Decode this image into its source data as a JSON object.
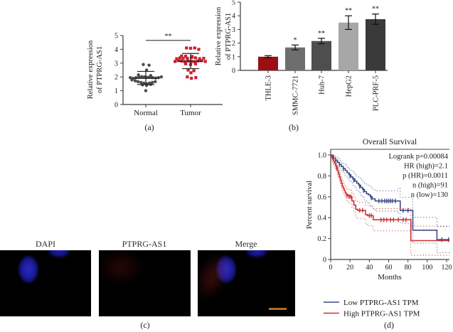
{
  "chart_data": [
    {
      "id": "a",
      "type": "scatter",
      "caption": "(a)",
      "ylabel": "Relative expression of PTPRG-AS1",
      "ylabel_lines": [
        "Relative expression",
        "of PTPRG-AS1"
      ],
      "ylim": [
        0,
        5
      ],
      "yticks": [
        0,
        1,
        2,
        3,
        4,
        5
      ],
      "significance": {
        "label": "**",
        "between": [
          "Normal",
          "Tumor"
        ],
        "y": 4.65
      },
      "groups": [
        {
          "name": "Normal",
          "marker": "circle",
          "color": "#4a4a4a",
          "mean": 1.9,
          "err_low": 1.45,
          "err_high": 2.4,
          "points": [
            [
              -0.15,
              2.9
            ],
            [
              0.2,
              2.85
            ],
            [
              0.05,
              2.5
            ],
            [
              -0.45,
              2.15
            ],
            [
              0.3,
              2.1
            ],
            [
              -0.95,
              1.95
            ],
            [
              -0.78,
              1.9
            ],
            [
              -0.6,
              1.95
            ],
            [
              -0.42,
              1.98
            ],
            [
              -0.25,
              2.02
            ],
            [
              -0.08,
              2.0
            ],
            [
              0.08,
              1.97
            ],
            [
              0.25,
              2.0
            ],
            [
              0.42,
              1.95
            ],
            [
              0.6,
              1.92
            ],
            [
              0.78,
              1.95
            ],
            [
              0.95,
              2.0
            ],
            [
              -0.85,
              1.78
            ],
            [
              -0.65,
              1.72
            ],
            [
              -0.48,
              1.66
            ],
            [
              -0.3,
              1.6
            ],
            [
              -0.12,
              1.55
            ],
            [
              0.05,
              1.5
            ],
            [
              0.22,
              1.55
            ],
            [
              0.4,
              1.6
            ],
            [
              0.58,
              1.66
            ],
            [
              -0.2,
              1.42
            ],
            [
              0.05,
              1.38
            ],
            [
              0.3,
              1.45
            ],
            [
              0.0,
              1.0
            ]
          ]
        },
        {
          "name": "Tumor",
          "marker": "square",
          "color": "#c92030",
          "mean": 3.15,
          "err_low": 2.6,
          "err_high": 3.7,
          "points": [
            [
              -0.25,
              4.1
            ],
            [
              0.0,
              4.08
            ],
            [
              0.25,
              4.1
            ],
            [
              0.5,
              4.0
            ],
            [
              -0.55,
              3.52
            ],
            [
              -0.3,
              3.5
            ],
            [
              0.1,
              3.48
            ],
            [
              -0.85,
              3.32
            ],
            [
              -0.65,
              3.38
            ],
            [
              -0.45,
              3.35
            ],
            [
              -0.2,
              3.35
            ],
            [
              0.05,
              3.4
            ],
            [
              0.3,
              3.38
            ],
            [
              0.55,
              3.32
            ],
            [
              0.8,
              3.35
            ],
            [
              -0.95,
              3.12
            ],
            [
              -0.75,
              3.18
            ],
            [
              -0.55,
              3.15
            ],
            [
              -0.35,
              3.1
            ],
            [
              -0.15,
              3.15
            ],
            [
              0.05,
              3.12
            ],
            [
              0.25,
              3.1
            ],
            [
              0.45,
              3.15
            ],
            [
              0.65,
              3.18
            ],
            [
              0.9,
              3.12
            ],
            [
              -0.3,
              2.95
            ],
            [
              0.0,
              2.9
            ],
            [
              0.3,
              2.95
            ],
            [
              -0.15,
              2.5
            ],
            [
              0.2,
              2.45
            ],
            [
              0.02,
              2.3
            ],
            [
              -0.2,
              2.0
            ],
            [
              0.05,
              1.9
            ],
            [
              0.32,
              1.95
            ]
          ]
        }
      ]
    },
    {
      "id": "b",
      "type": "bar",
      "caption": "(b)",
      "ylabel": "Relative expression of PTPRG-AS1",
      "ylabel_lines": [
        "Relative expression",
        "of PTPRG-AS1"
      ],
      "ylim": [
        0,
        5
      ],
      "yticks": [
        0,
        1,
        2,
        3,
        4,
        5
      ],
      "categories": [
        "THLE-3",
        "SMMC-7721",
        "Huh-7",
        "HepG2",
        "PLC-PRF-5"
      ],
      "values": [
        1.0,
        1.68,
        2.15,
        3.5,
        3.75
      ],
      "errors": [
        0.08,
        0.18,
        0.2,
        0.5,
        0.38
      ],
      "sig": [
        "",
        "*",
        "**",
        "**",
        "**"
      ],
      "colors": [
        "#9b0e12",
        "#6e6e6e",
        "#4e4e4e",
        "#a7a7a7",
        "#3a3a3a"
      ]
    },
    {
      "id": "d",
      "type": "km_line",
      "caption": "(d)",
      "title": "Overall Survival",
      "xlabel": "Months",
      "ylabel": "Percent survival",
      "xlim": [
        0,
        120
      ],
      "xticks": [
        0,
        20,
        40,
        60,
        80,
        100,
        120
      ],
      "ylim": [
        0,
        1
      ],
      "yticks": [
        0,
        0.2,
        0.4,
        0.6,
        0.8,
        1.0
      ],
      "annotations": [
        "Logrank p=0.00084",
        "HR (high)=2.1",
        "p (HR)=0.0011",
        "n (high)=91",
        "n (low)=130"
      ],
      "legend_position": "bottom",
      "series": [
        {
          "name": "Low PTPRG-AS1 TPM",
          "color": "#3d4c87",
          "ci_offset": 0.08,
          "steps": [
            [
              0,
              1.0
            ],
            [
              2,
              0.99
            ],
            [
              3,
              0.97
            ],
            [
              5,
              0.95
            ],
            [
              7,
              0.93
            ],
            [
              9,
              0.91
            ],
            [
              11,
              0.89
            ],
            [
              13,
              0.87
            ],
            [
              15,
              0.85
            ],
            [
              17,
              0.83
            ],
            [
              19,
              0.81
            ],
            [
              21,
              0.79
            ],
            [
              23,
              0.77
            ],
            [
              25,
              0.75
            ],
            [
              27,
              0.73
            ],
            [
              29,
              0.71
            ],
            [
              31,
              0.69
            ],
            [
              33,
              0.67
            ],
            [
              35,
              0.65
            ],
            [
              37,
              0.63
            ],
            [
              39,
              0.62
            ],
            [
              41,
              0.6
            ],
            [
              43,
              0.58
            ],
            [
              46,
              0.56
            ],
            [
              70,
              0.56
            ],
            [
              72,
              0.47
            ],
            [
              85,
              0.28
            ],
            [
              110,
              0.19
            ],
            [
              123,
              0.19
            ]
          ],
          "censors": [
            [
              5,
              0.95
            ],
            [
              9,
              0.91
            ],
            [
              13,
              0.87
            ],
            [
              20,
              0.8
            ],
            [
              24,
              0.76
            ],
            [
              30,
              0.7
            ],
            [
              34,
              0.66
            ],
            [
              42,
              0.59
            ],
            [
              50,
              0.56
            ],
            [
              53,
              0.56
            ],
            [
              56,
              0.56
            ],
            [
              58,
              0.56
            ],
            [
              60,
              0.56
            ],
            [
              62,
              0.56
            ],
            [
              64,
              0.56
            ],
            [
              67,
              0.56
            ],
            [
              75,
              0.47
            ],
            [
              80,
              0.47
            ],
            [
              115,
              0.19
            ],
            [
              122,
              0.19
            ]
          ]
        },
        {
          "name": "High PTPRG-AS1 TPM",
          "color": "#c93335",
          "ci_offset": 0.09,
          "steps": [
            [
              0,
              1.0
            ],
            [
              1,
              0.98
            ],
            [
              2,
              0.96
            ],
            [
              3,
              0.94
            ],
            [
              4,
              0.92
            ],
            [
              5,
              0.9
            ],
            [
              6,
              0.88
            ],
            [
              7,
              0.85
            ],
            [
              8,
              0.82
            ],
            [
              9,
              0.79
            ],
            [
              10,
              0.76
            ],
            [
              11,
              0.73
            ],
            [
              12,
              0.7
            ],
            [
              13,
              0.68
            ],
            [
              14,
              0.66
            ],
            [
              15,
              0.64
            ],
            [
              16,
              0.62
            ],
            [
              18,
              0.61
            ],
            [
              20,
              0.6
            ],
            [
              22,
              0.56
            ],
            [
              24,
              0.52
            ],
            [
              26,
              0.48
            ],
            [
              28,
              0.47
            ],
            [
              36,
              0.43
            ],
            [
              38,
              0.42
            ],
            [
              44,
              0.38
            ],
            [
              83,
              0.18
            ],
            [
              123,
              0.18
            ]
          ],
          "censors": [
            [
              6,
              0.88
            ],
            [
              17,
              0.61
            ],
            [
              19,
              0.6
            ],
            [
              21,
              0.6
            ],
            [
              30,
              0.47
            ],
            [
              33,
              0.47
            ],
            [
              40,
              0.42
            ],
            [
              42,
              0.42
            ],
            [
              52,
              0.38
            ],
            [
              55,
              0.38
            ],
            [
              58,
              0.38
            ],
            [
              62,
              0.38
            ],
            [
              65,
              0.38
            ],
            [
              70,
              0.38
            ],
            [
              75,
              0.38
            ],
            [
              78,
              0.38
            ]
          ]
        }
      ]
    }
  ],
  "microscopy": {
    "caption": "(c)",
    "labels": [
      "DAPI",
      "PTPRG-AS1",
      "Merge"
    ],
    "scalebar_color": "#b06a28"
  }
}
